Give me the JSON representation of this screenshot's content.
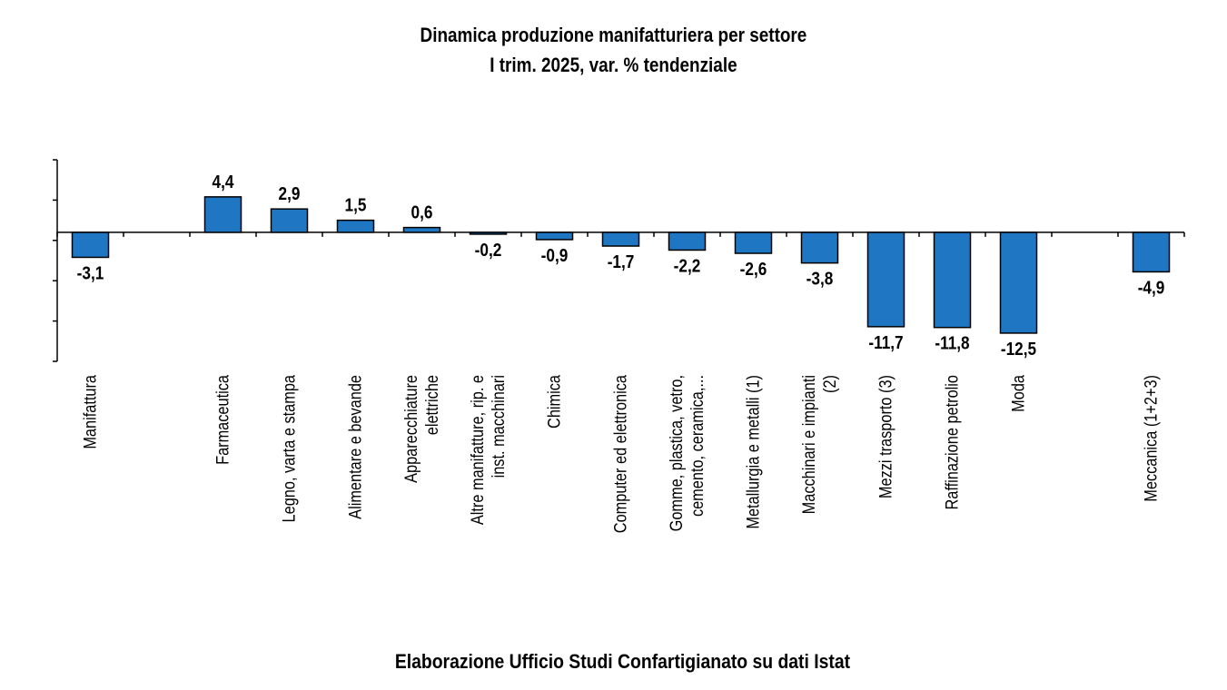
{
  "chart_data": {
    "type": "bar",
    "title": "Dinamica produzione manifatturiera per settore",
    "subtitle": "I trim. 2025, var. % tendenziale",
    "source": "Elaborazione Ufficio Studi Confartigianato su dati Istat",
    "slots": [
      {
        "label": [
          "Manifattura"
        ],
        "value": -3.1,
        "value_label": "-3,1"
      },
      null,
      {
        "label": [
          "Farmaceutica"
        ],
        "value": 4.4,
        "value_label": "4,4"
      },
      {
        "label": [
          "Legno, varta e stampa"
        ],
        "value": 2.9,
        "value_label": "2,9"
      },
      {
        "label": [
          "Alimentare e bevande"
        ],
        "value": 1.5,
        "value_label": "1,5"
      },
      {
        "label": [
          "Apparecchiature",
          "elettriche"
        ],
        "value": 0.6,
        "value_label": "0,6"
      },
      {
        "label": [
          "Altre manifatture, rip. e",
          "inst. macchinari"
        ],
        "value": -0.2,
        "value_label": "-0,2"
      },
      {
        "label": [
          "Chimica"
        ],
        "value": -0.9,
        "value_label": "-0,9"
      },
      {
        "label": [
          "Computer ed elettronica"
        ],
        "value": -1.7,
        "value_label": "-1,7"
      },
      {
        "label": [
          "Gomme, plastica, vetro,",
          "cemento, ceramica,..."
        ],
        "value": -2.2,
        "value_label": "-2,2"
      },
      {
        "label": [
          "Metallurgia e metalli (1)"
        ],
        "value": -2.6,
        "value_label": "-2,6"
      },
      {
        "label": [
          "Macchinari e impianti",
          "(2)"
        ],
        "value": -3.8,
        "value_label": "-3,8"
      },
      {
        "label": [
          "Mezzi trasporto (3)"
        ],
        "value": -11.7,
        "value_label": "-11,7"
      },
      {
        "label": [
          "Raffinazione petrolio"
        ],
        "value": -11.8,
        "value_label": "-11,8"
      },
      {
        "label": [
          "Moda"
        ],
        "value": -12.5,
        "value_label": "-12,5"
      },
      null,
      {
        "label": [
          "Meccanica (1+2+3)"
        ],
        "value": -4.9,
        "value_label": "-4,9"
      }
    ],
    "ylim": [
      -16,
      9
    ],
    "y_tick_step": 5,
    "tick_labels_shown": false,
    "grid": false,
    "bar_color": "#1f77c4",
    "bar_stroke": "#000000"
  }
}
